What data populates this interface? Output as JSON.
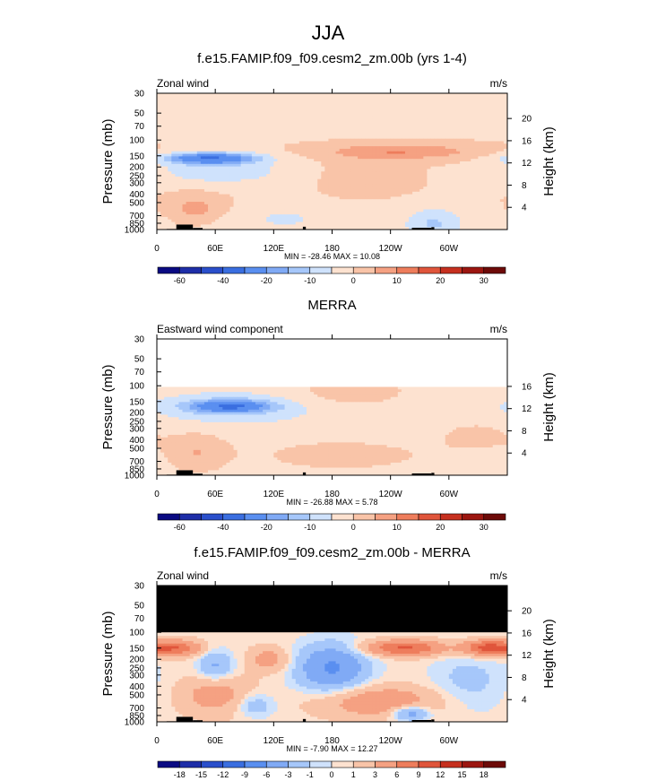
{
  "figure": {
    "title": "JJA"
  },
  "chart_data": [
    {
      "type": "heatmap",
      "title": "f.e15.FAMIP.f09_f09.cesm2_zm.00b (yrs 1-4)",
      "left_label": "Zonal wind",
      "units": "m/s",
      "ylabel": "Pressure (mb)",
      "ylabel_right": "Height (km)",
      "x_ticks": [
        "0",
        "60E",
        "120E",
        "180",
        "120W",
        "60W"
      ],
      "x_range": [
        0,
        360
      ],
      "y_ticks": [
        30,
        50,
        70,
        100,
        150,
        200,
        250,
        300,
        400,
        500,
        700,
        850,
        1000
      ],
      "y_range": [
        1000,
        30
      ],
      "height_ticks": [
        20,
        16,
        12,
        8,
        4
      ],
      "valid_ptop": 30,
      "mask_above": null,
      "stats": "MIN = -28.46  MAX =  10.08",
      "min": -28.46,
      "max": 10.08,
      "levels": [
        -60,
        -50,
        -40,
        -30,
        -20,
        -15,
        -10,
        -5,
        0,
        5,
        10,
        15,
        20,
        25,
        30
      ],
      "colorbar_labels": [
        "-60",
        "-40",
        "-20",
        "-10",
        "0",
        "10",
        "20",
        "30"
      ],
      "colorbar_label_bounds": [
        1,
        3,
        5,
        7,
        9,
        11,
        13,
        15
      ],
      "background": 0,
      "features": [
        {
          "lon": 55,
          "p": 160,
          "dlon": 45,
          "dp": 7,
          "amp": -28
        },
        {
          "lon": 65,
          "p": 220,
          "dlon": 75,
          "dp": 20,
          "amp": -8
        },
        {
          "lon": 180,
          "p": 40,
          "dlon": 360,
          "dp": 30,
          "amp": -4
        },
        {
          "lon": 250,
          "p": 135,
          "dlon": 75,
          "dp": 10,
          "amp": 10
        },
        {
          "lon": 210,
          "p": 250,
          "dlon": 40,
          "dp": 25,
          "amp": 3
        },
        {
          "lon": 40,
          "p": 600,
          "dlon": 30,
          "dp": 20,
          "amp": 8
        },
        {
          "lon": 130,
          "p": 700,
          "dlon": 50,
          "dp": 18,
          "amp": -3
        },
        {
          "lon": 285,
          "p": 850,
          "dlon": 25,
          "dp": 20,
          "amp": -8
        },
        {
          "lon": 180,
          "p": 900,
          "dlon": 360,
          "dp": 25,
          "amp": -3
        }
      ]
    },
    {
      "type": "heatmap",
      "title": "MERRA",
      "left_label": "Eastward wind component",
      "units": "m/s",
      "ylabel": "Pressure (mb)",
      "ylabel_right": "Height (km)",
      "x_ticks": [
        "0",
        "60E",
        "120E",
        "180",
        "120W",
        "60W"
      ],
      "x_range": [
        0,
        360
      ],
      "y_ticks": [
        30,
        50,
        70,
        100,
        150,
        200,
        250,
        300,
        400,
        500,
        700,
        850,
        1000
      ],
      "y_range": [
        1000,
        30
      ],
      "height_ticks": [
        16,
        12,
        8,
        4
      ],
      "valid_ptop": 100,
      "mask_above": null,
      "stats": "MIN = -26.88  MAX =  5.78",
      "min": -26.88,
      "max": 5.78,
      "levels": [
        -60,
        -50,
        -40,
        -30,
        -20,
        -15,
        -10,
        -5,
        0,
        5,
        10,
        15,
        20,
        25,
        30
      ],
      "colorbar_labels": [
        "-60",
        "-40",
        "-20",
        "-10",
        "0",
        "10",
        "20",
        "30"
      ],
      "colorbar_label_bounds": [
        1,
        3,
        5,
        7,
        9,
        11,
        13,
        15
      ],
      "background": -3,
      "features": [
        {
          "lon": 75,
          "p": 170,
          "dlon": 40,
          "dp": 8,
          "amp": -24
        },
        {
          "lon": 80,
          "p": 180,
          "dlon": 80,
          "dp": 20,
          "amp": -6
        },
        {
          "lon": 200,
          "p": 115,
          "dlon": 60,
          "dp": 20,
          "amp": 6
        },
        {
          "lon": 190,
          "p": 600,
          "dlon": 130,
          "dp": 30,
          "amp": 4
        },
        {
          "lon": 40,
          "p": 550,
          "dlon": 30,
          "dp": 25,
          "amp": 7
        },
        {
          "lon": 330,
          "p": 350,
          "dlon": 40,
          "dp": 20,
          "amp": 4
        }
      ]
    },
    {
      "type": "heatmap",
      "title": "f.e15.FAMIP.f09_f09.cesm2_zm.00b - MERRA",
      "left_label": "Zonal wind",
      "units": "m/s",
      "ylabel": "Pressure (mb)",
      "ylabel_right": "Height (km)",
      "x_ticks": [
        "0",
        "60E",
        "120E",
        "180",
        "120W",
        "60W"
      ],
      "x_range": [
        0,
        360
      ],
      "y_ticks": [
        30,
        50,
        70,
        100,
        150,
        200,
        250,
        300,
        400,
        500,
        700,
        850,
        1000
      ],
      "y_range": [
        1000,
        30
      ],
      "height_ticks": [
        20,
        16,
        12,
        8,
        4
      ],
      "valid_ptop": 30,
      "mask_above": 100,
      "stats": "MIN = -7.90  MAX = 12.27",
      "min": -7.9,
      "max": 12.27,
      "levels": [
        -18,
        -15,
        -12,
        -9,
        -6,
        -3,
        -1,
        0,
        1,
        3,
        6,
        9,
        12,
        15,
        18
      ],
      "colorbar_labels": [
        "-18",
        "-15",
        "-12",
        "-9",
        "-6",
        "-3",
        "-1",
        "0",
        "1",
        "3",
        "6",
        "9",
        "12",
        "15",
        "18"
      ],
      "colorbar_label_bounds": [
        1,
        2,
        3,
        4,
        5,
        6,
        7,
        8,
        9,
        10,
        11,
        12,
        13,
        14,
        15
      ],
      "background": 0.5,
      "features": [
        {
          "lon": 20,
          "p": 150,
          "dlon": 25,
          "dp": 10,
          "amp": 8
        },
        {
          "lon": 255,
          "p": 150,
          "dlon": 40,
          "dp": 10,
          "amp": 9
        },
        {
          "lon": 340,
          "p": 150,
          "dlon": 25,
          "dp": 10,
          "amp": 10
        },
        {
          "lon": 180,
          "p": 250,
          "dlon": 35,
          "dp": 30,
          "amp": -7
        },
        {
          "lon": 115,
          "p": 200,
          "dlon": 20,
          "dp": 15,
          "amp": 4
        },
        {
          "lon": 60,
          "p": 240,
          "dlon": 18,
          "dp": 20,
          "amp": -4
        },
        {
          "lon": 60,
          "p": 500,
          "dlon": 35,
          "dp": 25,
          "amp": 4
        },
        {
          "lon": 230,
          "p": 600,
          "dlon": 60,
          "dp": 20,
          "amp": 5
        },
        {
          "lon": 260,
          "p": 800,
          "dlon": 20,
          "dp": 10,
          "amp": -6
        },
        {
          "lon": 100,
          "p": 650,
          "dlon": 20,
          "dp": 15,
          "amp": -3
        },
        {
          "lon": 320,
          "p": 350,
          "dlon": 40,
          "dp": 40,
          "amp": -2
        }
      ]
    }
  ],
  "colors": {
    "palette": [
      "#0a0a82",
      "#1e2ea8",
      "#2a4fcb",
      "#3a6ee0",
      "#5a8ff0",
      "#80aaf5",
      "#a6c7fa",
      "#cfe2fc",
      "#fde2d0",
      "#f9c4a8",
      "#f5a182",
      "#ee7d5c",
      "#e0553b",
      "#c6301f",
      "#9c1610",
      "#6d0a08"
    ],
    "topography": "#000000",
    "mask": "#000000"
  }
}
